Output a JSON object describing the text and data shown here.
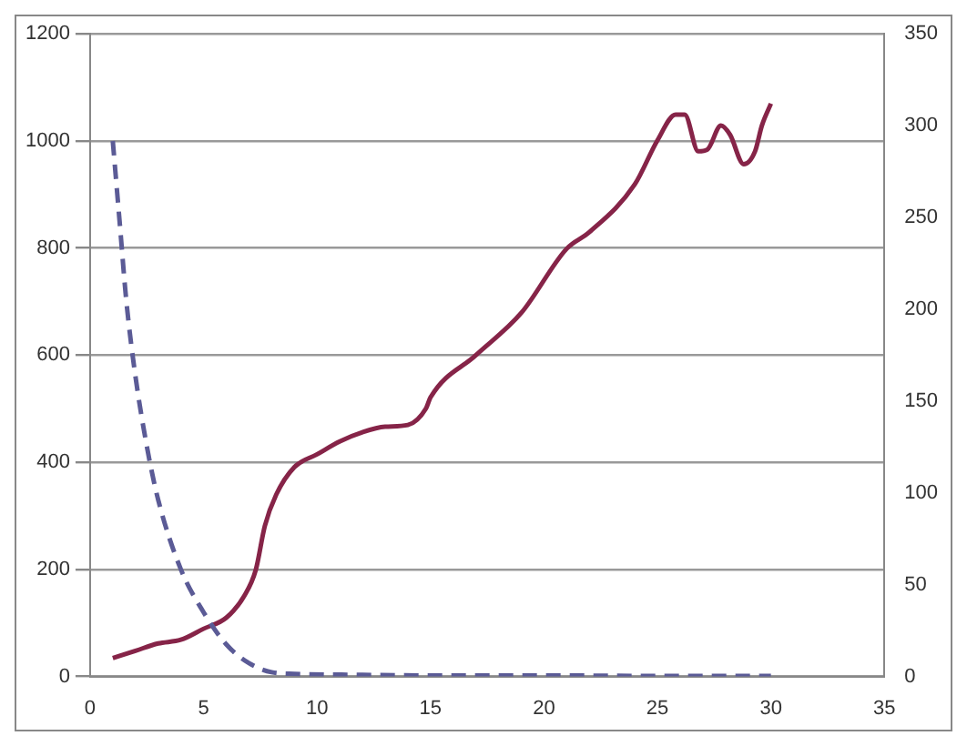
{
  "chart_data": {
    "type": "line",
    "xlim": [
      0,
      35
    ],
    "xticks": [
      0,
      5,
      10,
      15,
      20,
      25,
      30,
      35
    ],
    "ylim": [
      0,
      1200
    ],
    "yticks": [
      0,
      200,
      400,
      600,
      800,
      1000,
      1200
    ],
    "y2lim": [
      0,
      350
    ],
    "y2ticks": [
      0,
      50,
      100,
      150,
      200,
      250,
      300,
      350
    ],
    "grid": "y",
    "legend": false,
    "marker": "none",
    "series": [
      {
        "color": "#5b5b96",
        "line_style": "dashed",
        "x": [
          1,
          1.3,
          1.6,
          2,
          2.5,
          3,
          4,
          5,
          6,
          7,
          8,
          9,
          12,
          15,
          20,
          25,
          30
        ],
        "values": [
          1000,
          850,
          700,
          560,
          430,
          330,
          200,
          120,
          60,
          25,
          8,
          5,
          3,
          2,
          2,
          1,
          1
        ]
      },
      {
        "color": "#862448",
        "line_style": "solid",
        "axis": "y2",
        "x": [
          1,
          2,
          3,
          4,
          5,
          6,
          6.8,
          7.3,
          7.7,
          8.2,
          9,
          10,
          11,
          12,
          13,
          14,
          14.8,
          15,
          17,
          19,
          21,
          22,
          24,
          25,
          25.8,
          26.2,
          26.8,
          27.2,
          27.8,
          28.2,
          28.8,
          29.3,
          29.6,
          30
        ],
        "values": [
          10,
          14,
          18,
          20,
          26,
          32,
          44,
          58,
          82,
          99,
          114,
          121,
          128,
          133,
          136,
          137,
          146,
          152,
          175,
          198,
          233,
          242,
          268,
          292,
          306,
          306,
          286,
          287,
          300,
          295,
          279,
          286,
          300,
          312
        ]
      }
    ]
  }
}
